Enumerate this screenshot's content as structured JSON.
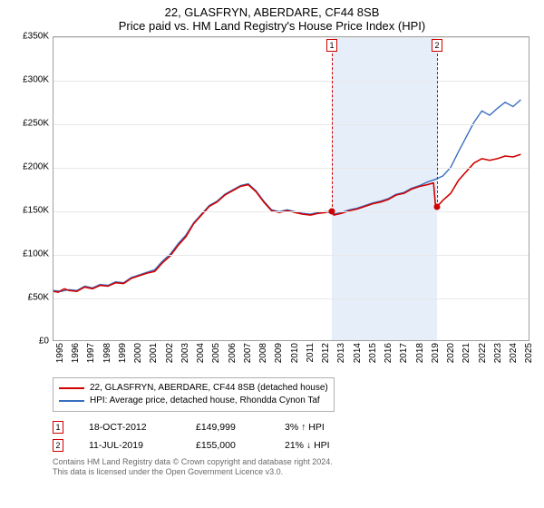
{
  "title_line1": "22, GLASFRYN, ABERDARE, CF44 8SB",
  "title_line2": "Price paid vs. HM Land Registry's House Price Index (HPI)",
  "chart": {
    "type": "line",
    "background_color": "#ffffff",
    "grid_color": "#e8e8e8",
    "axis_color": "#a0a0a0",
    "label_fontsize": 10,
    "y": {
      "min": 0,
      "max": 350000,
      "step": 50000,
      "ticks": [
        "£0",
        "£50K",
        "£100K",
        "£150K",
        "£200K",
        "£250K",
        "£300K",
        "£350K"
      ]
    },
    "x": {
      "min": 1995,
      "max": 2025.5,
      "ticks": [
        1995,
        1996,
        1997,
        1998,
        1999,
        2000,
        2001,
        2002,
        2003,
        2004,
        2005,
        2006,
        2007,
        2008,
        2009,
        2010,
        2011,
        2012,
        2013,
        2014,
        2015,
        2016,
        2017,
        2018,
        2019,
        2020,
        2021,
        2022,
        2023,
        2024,
        2025
      ]
    },
    "highlight_band": {
      "x_start": 2012.8,
      "x_end": 2019.53,
      "color": "#e6eef9"
    },
    "series": [
      {
        "id": "subject",
        "color": "#d00000",
        "width": 1.6,
        "points": [
          [
            1995,
            57000
          ],
          [
            1995.3,
            56000
          ],
          [
            1995.7,
            60000
          ],
          [
            1996,
            58000
          ],
          [
            1996.5,
            57000
          ],
          [
            1997,
            62000
          ],
          [
            1997.5,
            60000
          ],
          [
            1998,
            64000
          ],
          [
            1998.5,
            63000
          ],
          [
            1999,
            67000
          ],
          [
            1999.5,
            66000
          ],
          [
            2000,
            72000
          ],
          [
            2000.5,
            75000
          ],
          [
            2001,
            78000
          ],
          [
            2001.5,
            80000
          ],
          [
            2002,
            90000
          ],
          [
            2002.5,
            98000
          ],
          [
            2003,
            110000
          ],
          [
            2003.5,
            120000
          ],
          [
            2004,
            135000
          ],
          [
            2004.5,
            145000
          ],
          [
            2005,
            155000
          ],
          [
            2005.5,
            160000
          ],
          [
            2006,
            168000
          ],
          [
            2006.5,
            173000
          ],
          [
            2007,
            178000
          ],
          [
            2007.5,
            180000
          ],
          [
            2008,
            172000
          ],
          [
            2008.5,
            160000
          ],
          [
            2009,
            150000
          ],
          [
            2009.5,
            148000
          ],
          [
            2010,
            150000
          ],
          [
            2010.5,
            148000
          ],
          [
            2011,
            146000
          ],
          [
            2011.5,
            145000
          ],
          [
            2012,
            147000
          ],
          [
            2012.5,
            148000
          ],
          [
            2012.8,
            149999
          ],
          [
            2013,
            145000
          ],
          [
            2013.5,
            147000
          ],
          [
            2014,
            150000
          ],
          [
            2014.5,
            152000
          ],
          [
            2015,
            155000
          ],
          [
            2015.5,
            158000
          ],
          [
            2016,
            160000
          ],
          [
            2016.5,
            163000
          ],
          [
            2017,
            168000
          ],
          [
            2017.5,
            170000
          ],
          [
            2018,
            175000
          ],
          [
            2018.5,
            178000
          ],
          [
            2019,
            180000
          ],
          [
            2019.4,
            182000
          ],
          [
            2019.53,
            155000
          ],
          [
            2019.8,
            158000
          ],
          [
            2020,
            162000
          ],
          [
            2020.5,
            170000
          ],
          [
            2021,
            185000
          ],
          [
            2021.5,
            195000
          ],
          [
            2022,
            205000
          ],
          [
            2022.5,
            210000
          ],
          [
            2023,
            208000
          ],
          [
            2023.5,
            210000
          ],
          [
            2024,
            213000
          ],
          [
            2024.5,
            212000
          ],
          [
            2025,
            215000
          ]
        ]
      },
      {
        "id": "hpi",
        "color": "#3a6fc0",
        "width": 1.4,
        "points": [
          [
            1995,
            58000
          ],
          [
            1995.5,
            57000
          ],
          [
            1996,
            59000
          ],
          [
            1996.5,
            58000
          ],
          [
            1997,
            63000
          ],
          [
            1997.5,
            61000
          ],
          [
            1998,
            65000
          ],
          [
            1998.5,
            64000
          ],
          [
            1999,
            68000
          ],
          [
            1999.5,
            67000
          ],
          [
            2000,
            73000
          ],
          [
            2000.5,
            76000
          ],
          [
            2001,
            79000
          ],
          [
            2001.5,
            82000
          ],
          [
            2002,
            92000
          ],
          [
            2002.5,
            100000
          ],
          [
            2003,
            112000
          ],
          [
            2003.5,
            122000
          ],
          [
            2004,
            136000
          ],
          [
            2004.5,
            146000
          ],
          [
            2005,
            156000
          ],
          [
            2005.5,
            161000
          ],
          [
            2006,
            169000
          ],
          [
            2006.5,
            174000
          ],
          [
            2007,
            179000
          ],
          [
            2007.5,
            181000
          ],
          [
            2008,
            173000
          ],
          [
            2008.5,
            161000
          ],
          [
            2009,
            151000
          ],
          [
            2009.5,
            149000
          ],
          [
            2010,
            151000
          ],
          [
            2010.5,
            149000
          ],
          [
            2011,
            147000
          ],
          [
            2011.5,
            146000
          ],
          [
            2012,
            148000
          ],
          [
            2012.5,
            149000
          ],
          [
            2013,
            146000
          ],
          [
            2013.5,
            148000
          ],
          [
            2014,
            151000
          ],
          [
            2014.5,
            153000
          ],
          [
            2015,
            156000
          ],
          [
            2015.5,
            159000
          ],
          [
            2016,
            161000
          ],
          [
            2016.5,
            164000
          ],
          [
            2017,
            169000
          ],
          [
            2017.5,
            171000
          ],
          [
            2018,
            176000
          ],
          [
            2018.5,
            179000
          ],
          [
            2019,
            183000
          ],
          [
            2019.5,
            186000
          ],
          [
            2020,
            190000
          ],
          [
            2020.5,
            200000
          ],
          [
            2021,
            218000
          ],
          [
            2021.5,
            235000
          ],
          [
            2022,
            252000
          ],
          [
            2022.5,
            265000
          ],
          [
            2023,
            260000
          ],
          [
            2023.5,
            268000
          ],
          [
            2024,
            275000
          ],
          [
            2024.5,
            270000
          ],
          [
            2025,
            278000
          ]
        ]
      }
    ],
    "sale_markers": [
      {
        "num": "1",
        "x": 2012.8,
        "y": 149999
      },
      {
        "num": "2",
        "x": 2019.53,
        "y": 155000
      }
    ],
    "sale_marker_style": {
      "border_color": "#d00000",
      "dot_color": "#d00000"
    }
  },
  "legend": {
    "items": [
      {
        "color": "#d00000",
        "label": "22, GLASFRYN, ABERDARE, CF44 8SB (detached house)"
      },
      {
        "color": "#3a6fc0",
        "label": "HPI: Average price, detached house, Rhondda Cynon Taf"
      }
    ]
  },
  "sales_table": {
    "rows": [
      {
        "num": "1",
        "date": "18-OCT-2012",
        "price": "£149,999",
        "pct": "3%",
        "arrow": "↑",
        "suffix": "HPI"
      },
      {
        "num": "2",
        "date": "11-JUL-2019",
        "price": "£155,000",
        "pct": "21%",
        "arrow": "↓",
        "suffix": "HPI"
      }
    ]
  },
  "footer": {
    "line1": "Contains HM Land Registry data © Crown copyright and database right 2024.",
    "line2": "This data is licensed under the Open Government Licence v3.0."
  }
}
